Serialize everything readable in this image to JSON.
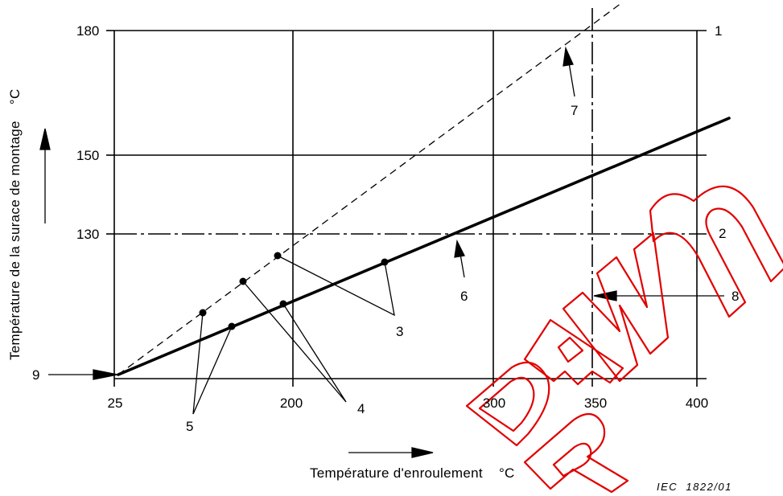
{
  "chart_data": {
    "type": "line",
    "xlabel": "Température d'enroulement    °C",
    "ylabel": "Température de la surace de montage    °C",
    "x_ticks": [
      "25",
      "200",
      "300",
      "350",
      "400"
    ],
    "y_ticks": [
      "180",
      "150",
      "130"
    ],
    "series": [
      {
        "role": "solid-heavy",
        "x": [
          25,
          410
        ],
        "y": [
          102,
          157
        ]
      },
      {
        "role": "dashed-thin",
        "x": [
          25,
          360
        ],
        "y": [
          102,
          187
        ]
      }
    ],
    "reference_lines": [
      {
        "orientation": "horizontal",
        "value": 130,
        "style": "dash-dot"
      },
      {
        "orientation": "vertical",
        "value": 350,
        "style": "dash-dot"
      }
    ],
    "points": [
      {
        "x": 163,
        "y": 114,
        "label": "5"
      },
      {
        "x": 181,
        "y": 112,
        "label": "5"
      },
      {
        "x": 185,
        "y": 121,
        "label": "4"
      },
      {
        "x": 197,
        "y": 116,
        "label": "4"
      },
      {
        "x": 195,
        "y": 126,
        "label": "3"
      },
      {
        "x": 255,
        "y": 124,
        "label": "3"
      }
    ],
    "callouts": [
      "1",
      "2",
      "3",
      "4",
      "5",
      "6",
      "7",
      "8",
      "9"
    ],
    "credit": "IEC  1822/01",
    "grid": true,
    "watermark": "DRAWN"
  }
}
